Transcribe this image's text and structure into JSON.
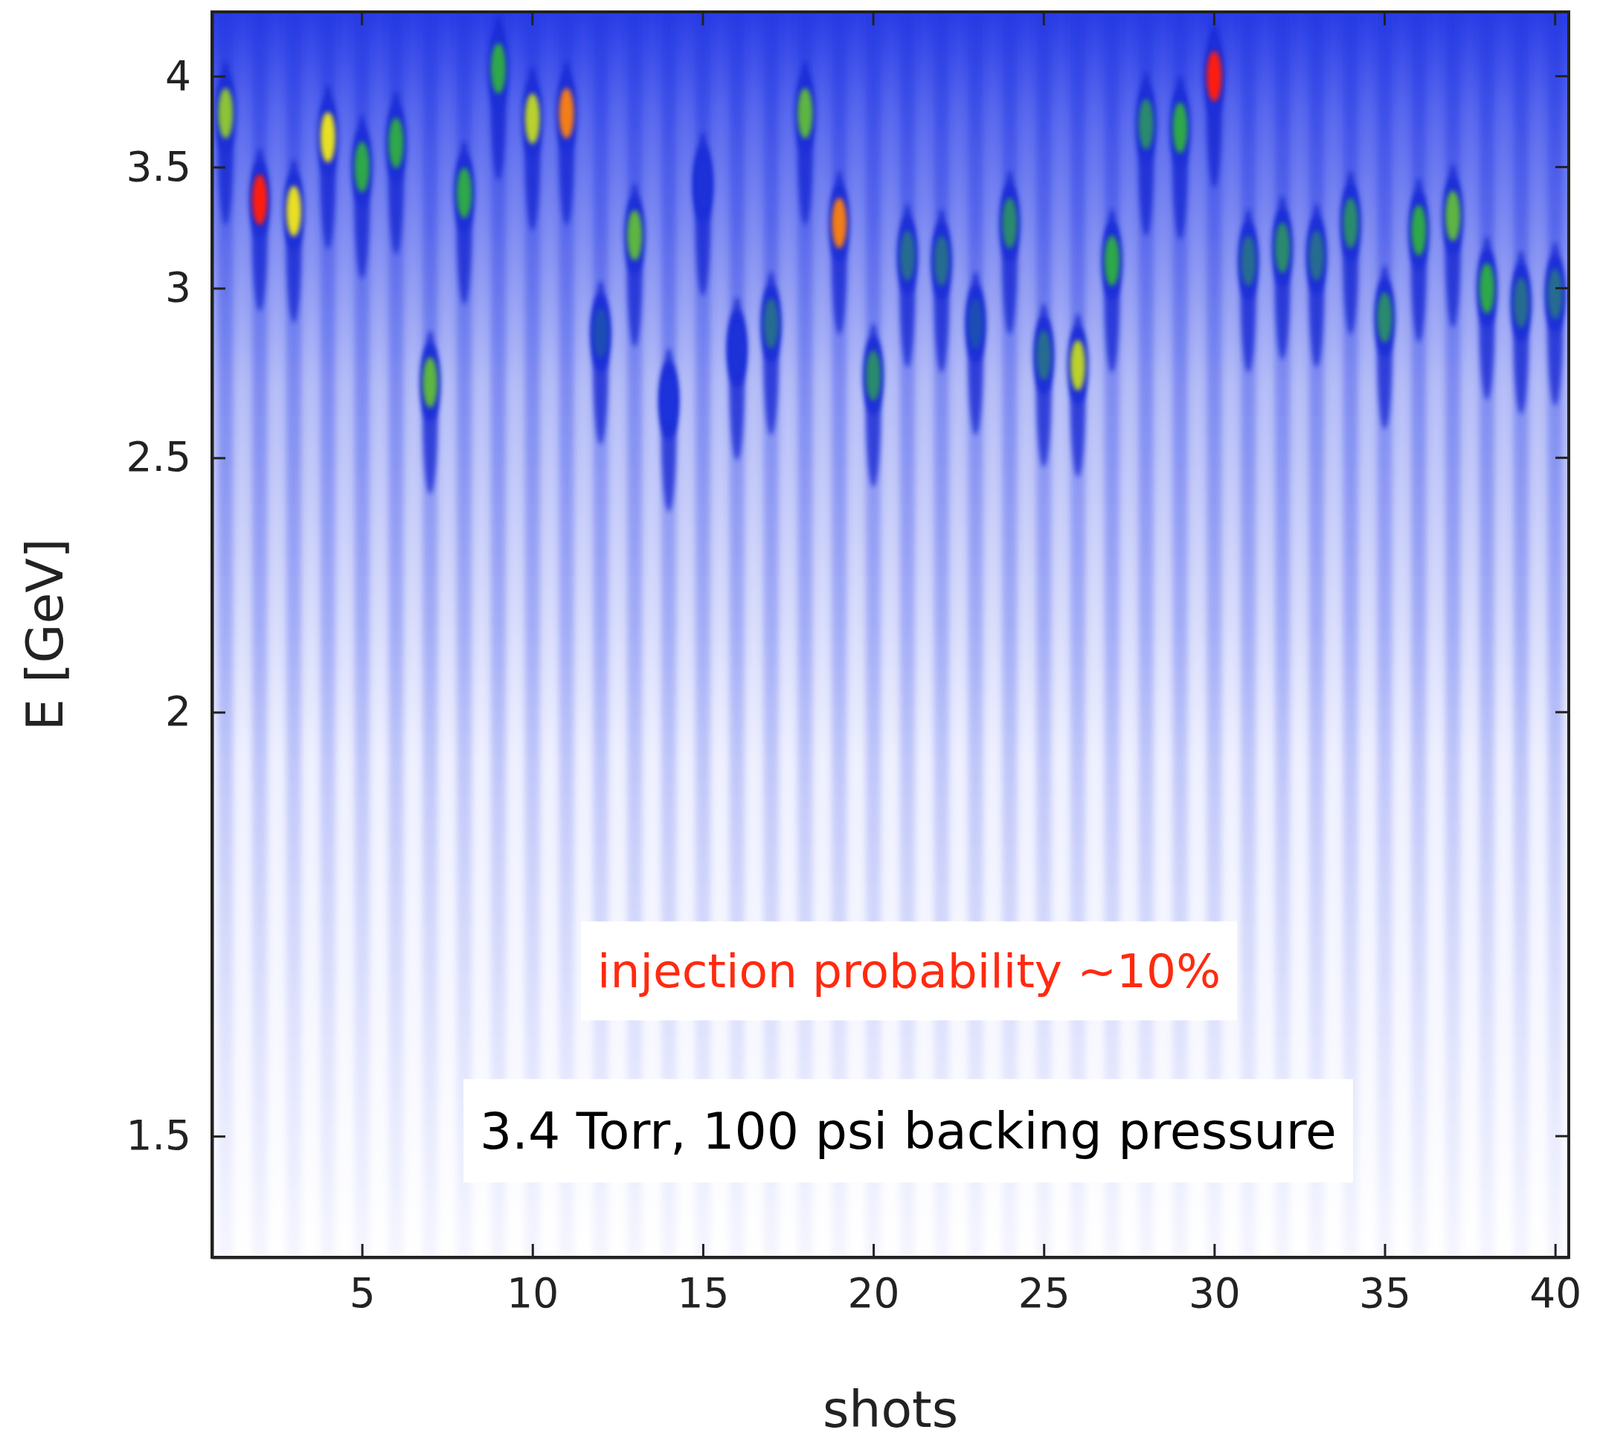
{
  "chart_data": {
    "type": "scatter",
    "x_label": "shots",
    "y_label": "E [GeV]",
    "x": [
      1,
      2,
      3,
      4,
      5,
      6,
      7,
      8,
      9,
      10,
      11,
      12,
      13,
      14,
      15,
      16,
      17,
      18,
      19,
      20,
      21,
      22,
      23,
      24,
      25,
      26,
      27,
      28,
      29,
      30,
      31,
      32,
      33,
      34,
      35,
      36,
      37,
      38,
      39,
      40
    ],
    "values": [
      3.78,
      3.35,
      3.3,
      3.65,
      3.5,
      3.62,
      2.7,
      3.38,
      4.05,
      3.75,
      3.78,
      2.85,
      3.2,
      2.65,
      3.42,
      2.8,
      2.88,
      3.78,
      3.25,
      2.72,
      3.12,
      3.1,
      2.88,
      3.25,
      2.78,
      2.75,
      3.1,
      3.72,
      3.7,
      4.0,
      3.1,
      3.15,
      3.12,
      3.25,
      2.9,
      3.22,
      3.28,
      3.0,
      2.95,
      2.98
    ],
    "intensity": [
      0.7,
      1.0,
      0.8,
      0.8,
      0.6,
      0.6,
      0.65,
      0.6,
      0.6,
      0.75,
      0.9,
      0.45,
      0.65,
      0.35,
      0.4,
      0.4,
      0.5,
      0.65,
      0.9,
      0.55,
      0.5,
      0.5,
      0.45,
      0.55,
      0.5,
      0.75,
      0.6,
      0.55,
      0.6,
      1.0,
      0.5,
      0.55,
      0.5,
      0.55,
      0.55,
      0.6,
      0.65,
      0.6,
      0.5,
      0.5
    ],
    "intensity_range": [
      0,
      1
    ],
    "xlim": [
      0.6,
      40.4
    ],
    "ylim": [
      1.4,
      4.45
    ],
    "xticks": [
      5,
      10,
      15,
      20,
      25,
      30,
      35,
      40
    ],
    "yticks": [
      1.5,
      2,
      2.5,
      3,
      3.5,
      4
    ],
    "annotations": [
      {
        "text": "injection probability ~10%",
        "color": "#ff2a10"
      },
      {
        "text": "3.4 Torr, 100 psi backing pressure",
        "color": "#000000"
      }
    ]
  }
}
